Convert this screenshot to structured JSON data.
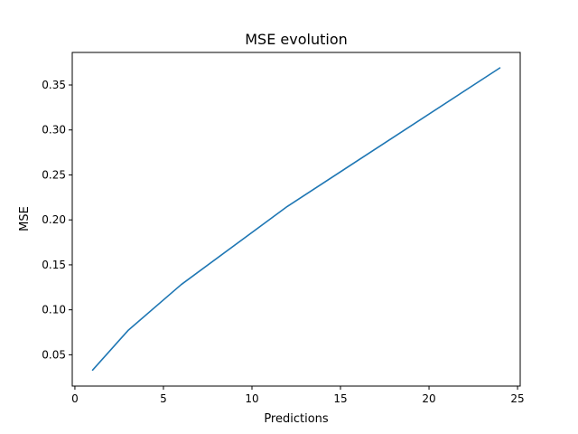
{
  "chart_data": {
    "type": "line",
    "title": "MSE evolution",
    "xlabel": "Predictions",
    "ylabel": "MSE",
    "xlim": [
      -0.15,
      25.15
    ],
    "ylim": [
      0.0152,
      0.3862
    ],
    "xticks": [
      0,
      5,
      10,
      15,
      20,
      25
    ],
    "xtick_labels": [
      "0",
      "5",
      "10",
      "15",
      "20",
      "25"
    ],
    "yticks": [
      0.05,
      0.1,
      0.15,
      0.2,
      0.25,
      0.3,
      0.35
    ],
    "ytick_labels": [
      "0.05",
      "0.10",
      "0.15",
      "0.20",
      "0.25",
      "0.30",
      "0.35"
    ],
    "grid": false,
    "series": [
      {
        "color": "#1f77b4",
        "x": [
          1,
          3,
          6,
          12,
          24
        ],
        "y": [
          0.033,
          0.077,
          0.128,
          0.215,
          0.369
        ]
      }
    ]
  }
}
